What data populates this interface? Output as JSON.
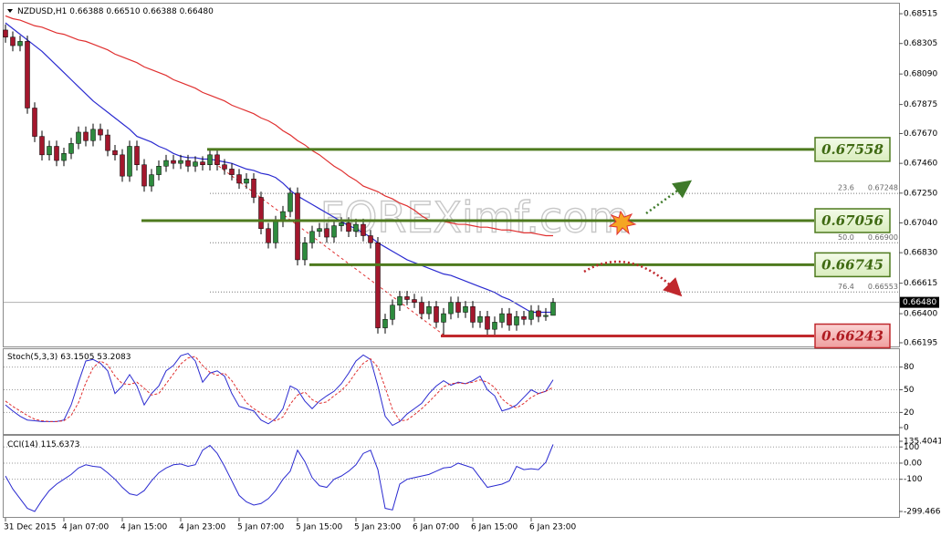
{
  "header": {
    "symbol": "NZDUSD,H1",
    "ohlc": [
      "0.66388",
      "0.66510",
      "0.66388",
      "0.66480"
    ]
  },
  "watermark": "FOREXimf.com",
  "chart_data": [
    {
      "type": "candlestick",
      "categories": [
        "31 Dec 2015",
        null,
        null,
        null,
        null,
        null,
        null,
        null,
        "4 Jan 07:00",
        null,
        null,
        null,
        null,
        null,
        null,
        null,
        "4 Jan 15:00",
        null,
        null,
        null,
        null,
        null,
        null,
        null,
        "4 Jan 23:00",
        null,
        null,
        null,
        null,
        null,
        null,
        null,
        "5 Jan 07:00",
        null,
        null,
        null,
        null,
        null,
        null,
        null,
        "5 Jan 15:00",
        null,
        null,
        null,
        null,
        null,
        null,
        null,
        "5 Jan 23:00",
        null,
        null,
        null,
        null,
        null,
        null,
        null,
        "6 Jan 07:00",
        null,
        null,
        null,
        null,
        null,
        null,
        null,
        "6 Jan 15:00",
        null,
        null,
        null,
        null,
        null,
        null,
        null,
        "6 Jan 23:00",
        null,
        null,
        null
      ],
      "open": [
        0.684,
        0.6835,
        0.6829,
        0.6832,
        0.6785,
        0.6765,
        0.6752,
        0.6758,
        0.6748,
        0.6753,
        0.676,
        0.6768,
        0.6762,
        0.677,
        0.6766,
        0.6755,
        0.6752,
        0.6737,
        0.6758,
        0.6745,
        0.673,
        0.6738,
        0.6744,
        0.6748,
        0.6746,
        0.6748,
        0.6744,
        0.6747,
        0.6745,
        0.6752,
        0.6745,
        0.6742,
        0.6738,
        0.6732,
        0.6735,
        0.6722,
        0.67,
        0.669,
        0.6705,
        0.6712,
        0.6725,
        0.6678,
        0.669,
        0.6698,
        0.67,
        0.6694,
        0.6702,
        0.6704,
        0.6698,
        0.6703,
        0.6695,
        0.669,
        0.663,
        0.6636,
        0.6646,
        0.6652,
        0.665,
        0.6648,
        0.664,
        0.6645,
        0.6634,
        0.664,
        0.6648,
        0.6641,
        0.6645,
        0.6634,
        0.6638,
        0.6629,
        0.6634,
        0.664,
        0.6632,
        0.6638,
        0.6636,
        0.6642,
        0.6638,
        0.66388
      ],
      "high": [
        0.6844,
        0.6839,
        0.6836,
        0.6836,
        0.6789,
        0.6769,
        0.6762,
        0.6762,
        0.6757,
        0.6764,
        0.6772,
        0.6772,
        0.6774,
        0.6774,
        0.677,
        0.6759,
        0.6756,
        0.6762,
        0.6762,
        0.6749,
        0.6742,
        0.6748,
        0.6752,
        0.6752,
        0.6752,
        0.6752,
        0.6751,
        0.6751,
        0.67558,
        0.6755,
        0.6749,
        0.6746,
        0.6742,
        0.6739,
        0.6739,
        0.6726,
        0.6704,
        0.6709,
        0.6716,
        0.6729,
        0.6729,
        0.6694,
        0.6702,
        0.6704,
        0.6704,
        0.6706,
        0.6708,
        0.6708,
        0.6707,
        0.6707,
        0.6699,
        0.6694,
        0.664,
        0.665,
        0.6656,
        0.6656,
        0.6654,
        0.6652,
        0.6649,
        0.6649,
        0.6644,
        0.6652,
        0.6652,
        0.6649,
        0.6649,
        0.6642,
        0.6642,
        0.6638,
        0.6644,
        0.6644,
        0.6642,
        0.6642,
        0.6646,
        0.6646,
        0.6644,
        0.6651
      ],
      "low": [
        0.6831,
        0.6825,
        0.6825,
        0.6781,
        0.6761,
        0.6748,
        0.6748,
        0.6744,
        0.6744,
        0.6749,
        0.6756,
        0.6758,
        0.6758,
        0.6762,
        0.6751,
        0.6748,
        0.6733,
        0.6733,
        0.6741,
        0.6726,
        0.6726,
        0.6734,
        0.674,
        0.6742,
        0.6742,
        0.674,
        0.674,
        0.6741,
        0.6741,
        0.6741,
        0.6738,
        0.6734,
        0.6728,
        0.6728,
        0.6718,
        0.6696,
        0.6686,
        0.6686,
        0.6701,
        0.6708,
        0.6674,
        0.6674,
        0.6686,
        0.6694,
        0.669,
        0.669,
        0.6698,
        0.6694,
        0.6694,
        0.6691,
        0.6686,
        0.6626,
        0.6626,
        0.6632,
        0.6642,
        0.6646,
        0.6644,
        0.6636,
        0.6636,
        0.663,
        0.66243,
        0.6636,
        0.6637,
        0.6637,
        0.663,
        0.663,
        0.6625,
        0.6625,
        0.663,
        0.6628,
        0.6628,
        0.6632,
        0.6632,
        0.6634,
        0.6635,
        0.66388
      ],
      "close": [
        0.6835,
        0.6829,
        0.6832,
        0.6785,
        0.6765,
        0.6752,
        0.6758,
        0.6748,
        0.6753,
        0.676,
        0.6768,
        0.6762,
        0.677,
        0.6766,
        0.6755,
        0.6752,
        0.6737,
        0.6758,
        0.6745,
        0.673,
        0.6738,
        0.6744,
        0.6748,
        0.6746,
        0.6748,
        0.6744,
        0.6747,
        0.6745,
        0.6752,
        0.6745,
        0.6742,
        0.6738,
        0.6732,
        0.6735,
        0.6722,
        0.67,
        0.669,
        0.6705,
        0.6712,
        0.6725,
        0.6678,
        0.669,
        0.6698,
        0.67,
        0.6694,
        0.6702,
        0.6704,
        0.6698,
        0.6703,
        0.6695,
        0.669,
        0.663,
        0.6636,
        0.6646,
        0.6652,
        0.665,
        0.6648,
        0.664,
        0.6645,
        0.6634,
        0.664,
        0.6648,
        0.6641,
        0.6645,
        0.6634,
        0.6638,
        0.6629,
        0.6634,
        0.664,
        0.6632,
        0.6638,
        0.6636,
        0.6642,
        0.6638,
        0.66388,
        0.6648
      ],
      "up_color": "#2e8b3e",
      "down_color": "#a3172d",
      "ma": [
        {
          "color": "#2a2ad0",
          "values": [
            0.6845,
            0.6841,
            0.6837,
            0.6833,
            0.6829,
            0.6825,
            0.682,
            0.6815,
            0.681,
            0.6805,
            0.68,
            0.6795,
            0.679,
            0.6786,
            0.6782,
            0.6778,
            0.6774,
            0.677,
            0.6765,
            0.6763,
            0.6761,
            0.6758,
            0.6756,
            0.6753,
            0.6751,
            0.675,
            0.675,
            0.6749,
            0.6749,
            0.6748,
            0.6747,
            0.6746,
            0.6744,
            0.6742,
            0.6741,
            0.6739,
            0.6738,
            0.6736,
            0.6732,
            0.6727,
            0.6723,
            0.672,
            0.6717,
            0.6714,
            0.6711,
            0.6708,
            0.6705,
            0.6702,
            0.67,
            0.6697,
            0.6694,
            0.669,
            0.6687,
            0.6684,
            0.6681,
            0.6678,
            0.6676,
            0.6674,
            0.6672,
            0.667,
            0.6668,
            0.6667,
            0.6665,
            0.6663,
            0.6661,
            0.6659,
            0.6657,
            0.6655,
            0.6652,
            0.665,
            0.6647,
            0.6644,
            0.6641,
            0.6641,
            0.6641,
            0.6641
          ]
        },
        {
          "color": "#e03030",
          "values": [
            0.685,
            0.6848,
            0.6847,
            0.6845,
            0.6843,
            0.6842,
            0.684,
            0.6838,
            0.6837,
            0.6835,
            0.6833,
            0.6832,
            0.683,
            0.6828,
            0.6826,
            0.6823,
            0.6821,
            0.6819,
            0.6817,
            0.6814,
            0.6812,
            0.681,
            0.6808,
            0.6805,
            0.6803,
            0.6801,
            0.6799,
            0.6796,
            0.6794,
            0.6792,
            0.679,
            0.6787,
            0.6785,
            0.6783,
            0.6781,
            0.6778,
            0.6776,
            0.6773,
            0.6769,
            0.6766,
            0.6762,
            0.6759,
            0.6755,
            0.6752,
            0.6748,
            0.6744,
            0.6741,
            0.6737,
            0.6734,
            0.673,
            0.6728,
            0.6726,
            0.6723,
            0.6721,
            0.6718,
            0.6716,
            0.6713,
            0.6709,
            0.6706,
            0.6705,
            0.6705,
            0.6704,
            0.6703,
            0.6703,
            0.6702,
            0.6701,
            0.6701,
            0.67,
            0.6699,
            0.6699,
            0.6698,
            0.6697,
            0.6697,
            0.6696,
            0.6695,
            0.6695
          ]
        }
      ],
      "levels": [
        {
          "value": 0.67558,
          "color": "#4e7a1e"
        },
        {
          "value": 0.67056,
          "color": "#4e7a1e"
        },
        {
          "value": 0.66745,
          "color": "#4e7a1e"
        },
        {
          "value": 0.66243,
          "color": "#c0282d"
        }
      ],
      "fib": [
        {
          "level": 23.6,
          "value": 0.67248
        },
        {
          "level": {
            "value": 50,
            "label": "50.0"
          },
          "value": {
            "value": 0.669,
            "label": "0.66900"
          }
        },
        {
          "level": 76.4,
          "value": 0.66553
        }
      ],
      "current_price": {
        "value": 0.6648,
        "label": "0.66480"
      },
      "ylim": [
        0.66169,
        0.68586
      ],
      "yticks": [
        0.68515,
        0.68305,
        {
          "value": 0.6809,
          "label": "0.68090"
        },
        0.67875,
        {
          "value": 0.6767,
          "label": "0.67670"
        },
        {
          "value": 0.6746,
          "label": "0.67460"
        },
        {
          "value": 0.6725,
          "label": "0.67250"
        },
        {
          "value": 0.6704,
          "label": "0.67040"
        },
        {
          "value": 0.6683,
          "label": "0.66830"
        },
        0.66615,
        {
          "value": 0.664,
          "label": "0.66400"
        },
        0.66195
      ],
      "grid": false
    },
    {
      "type": "line",
      "title": "Stoch(5,3,3)",
      "series": [
        {
          "color": "#2a2ad0",
          "values": [
            30,
            22,
            15,
            10,
            9,
            8,
            8,
            8,
            10,
            30,
            60,
            88,
            90,
            85,
            75,
            45,
            55,
            70,
            55,
            30,
            45,
            55,
            75,
            82,
            95,
            98,
            88,
            60,
            72,
            75,
            68,
            45,
            28,
            25,
            22,
            10,
            5,
            12,
            25,
            55,
            50,
            35,
            25,
            35,
            42,
            48,
            58,
            72,
            88,
            96,
            90,
            55,
            15,
            3,
            8,
            18,
            25,
            32,
            45,
            55,
            62,
            56,
            60,
            58,
            62,
            68,
            50,
            42,
            22,
            25,
            30,
            40,
            50,
            45,
            48,
            63.1505
          ]
        },
        {
          "color": "#e03030",
          "dashed": true,
          "values": [
            35,
            28,
            22,
            16,
            11,
            9,
            8,
            8,
            9,
            16,
            33,
            59,
            79,
            88,
            83,
            68,
            58,
            57,
            60,
            52,
            43,
            45,
            58,
            71,
            84,
            92,
            94,
            82,
            73,
            69,
            72,
            62,
            47,
            33,
            25,
            19,
            12,
            9,
            14,
            31,
            43,
            47,
            37,
            32,
            34,
            42,
            49,
            59,
            73,
            85,
            91,
            80,
            53,
            24,
            9,
            10,
            17,
            25,
            34,
            44,
            54,
            58,
            59,
            58,
            60,
            63,
            60,
            53,
            38,
            30,
            26,
            32,
            40,
            45,
            48,
            53.2083
          ]
        }
      ],
      "ylim": [
        0,
        100
      ],
      "yticks": [
        0,
        20,
        50,
        80
      ],
      "grid": true
    },
    {
      "type": "line",
      "title": "CCI(14)",
      "series": [
        {
          "color": "#2a2ad0",
          "values": [
            -80,
            -160,
            -220,
            -280,
            -299.4663,
            -230,
            -170,
            -130,
            -100,
            -70,
            -30,
            -10,
            -20,
            -25,
            -60,
            -100,
            -150,
            -190,
            -200,
            -170,
            -110,
            -60,
            -30,
            -10,
            -5,
            -20,
            -10,
            80,
            110,
            60,
            -20,
            -110,
            -200,
            -240,
            -260,
            -250,
            -220,
            -170,
            -100,
            -50,
            80,
            10,
            -90,
            -140,
            -150,
            -100,
            -80,
            -50,
            -10,
            60,
            80,
            -40,
            -280,
            -290,
            -130,
            -100,
            -90,
            -80,
            -70,
            -50,
            -30,
            -25,
            0,
            -15,
            -30,
            -90,
            -150,
            -140,
            -130,
            -110,
            -20,
            -40,
            -35,
            -40,
            5,
            115.6373
          ]
        }
      ],
      "ylim": [
        -299.4663,
        135.4041
      ],
      "yticks": [
        135.4041,
        100,
        {
          "value": 0,
          "label": "0.00"
        },
        -100,
        -299.4663
      ],
      "grid": true
    }
  ]
}
